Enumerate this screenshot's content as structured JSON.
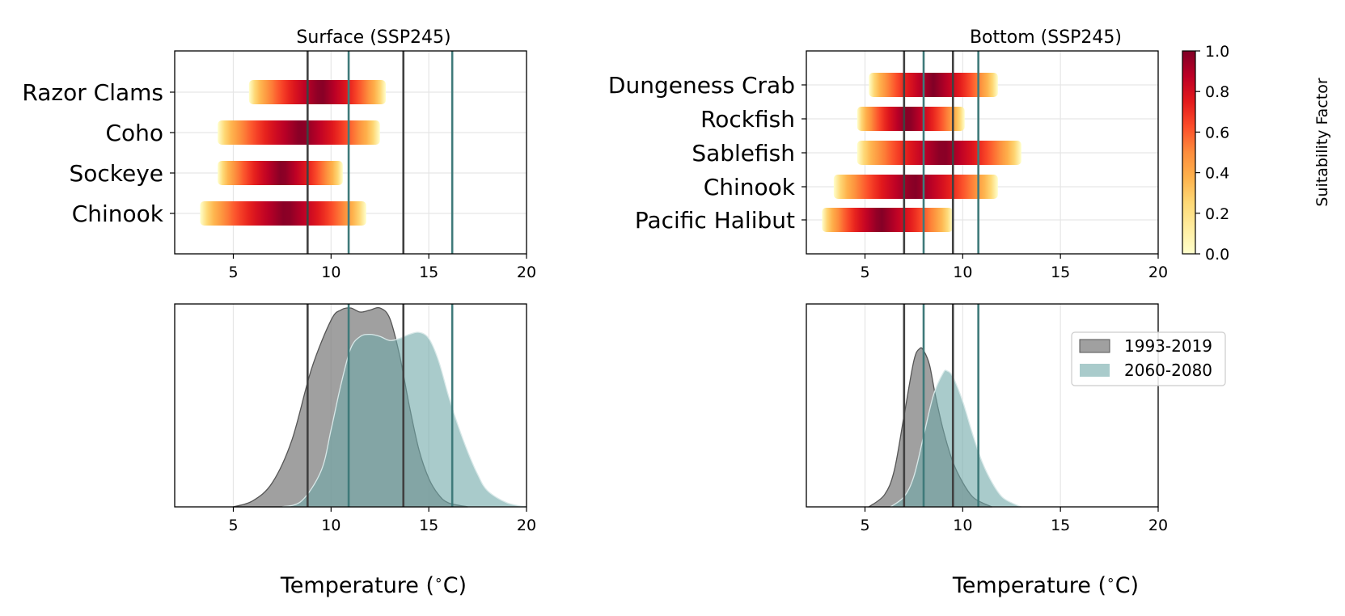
{
  "chart_data": [
    {
      "id": "surface-suitability",
      "type": "heatmap",
      "title": "Surface (SSP245)",
      "xlim": [
        2,
        20
      ],
      "xticks": [
        5,
        10,
        15,
        20
      ],
      "categories": [
        "Razor Clams",
        "Coho",
        "Sockeye",
        "Chinook"
      ],
      "ranges": [
        {
          "name": "Razor Clams",
          "min": 5.8,
          "max": 12.8,
          "peak": 9.5
        },
        {
          "name": "Coho",
          "min": 4.2,
          "max": 12.5,
          "peak": 8.5
        },
        {
          "name": "Sockeye",
          "min": 4.2,
          "max": 10.6,
          "peak": 7.5
        },
        {
          "name": "Chinook",
          "min": 3.3,
          "max": 11.8,
          "peak": 7.7
        }
      ],
      "reference_lines": {
        "1993-2019": [
          8.8,
          13.7
        ],
        "2060-2080": [
          10.9,
          16.2
        ]
      },
      "grid": true
    },
    {
      "id": "bottom-suitability",
      "type": "heatmap",
      "title": "Bottom (SSP245)",
      "xlim": [
        2,
        20
      ],
      "xticks": [
        5,
        10,
        15,
        20
      ],
      "categories": [
        "Dungeness Crab",
        "Rockfish",
        "Sablefish",
        "Chinook",
        "Pacific Halibut"
      ],
      "ranges": [
        {
          "name": "Dungeness Crab",
          "min": 5.2,
          "max": 11.8,
          "peak": 8.5
        },
        {
          "name": "Rockfish",
          "min": 4.6,
          "max": 10.1,
          "peak": 7.2
        },
        {
          "name": "Sablefish",
          "min": 4.6,
          "max": 13.0,
          "peak": 9.0
        },
        {
          "name": "Chinook",
          "min": 3.4,
          "max": 11.8,
          "peak": 7.5
        },
        {
          "name": "Pacific Halibut",
          "min": 2.8,
          "max": 9.5,
          "peak": 5.8
        }
      ],
      "reference_lines": {
        "1993-2019": [
          7.0,
          9.5
        ],
        "2060-2080": [
          8.0,
          10.8
        ]
      },
      "grid": true
    },
    {
      "id": "surface-density",
      "type": "area",
      "xlabel": "Temperature ($^\\circ$C)",
      "xlim": [
        2,
        20
      ],
      "xticks": [
        5,
        10,
        15,
        20
      ],
      "series": [
        {
          "name": "1993-2019",
          "color": "#808080",
          "opacity": 0.75,
          "x": [
            5.0,
            6.0,
            7.0,
            8.0,
            9.0,
            10.0,
            10.5,
            11.0,
            11.5,
            12.0,
            12.5,
            13.0,
            13.5,
            14.0,
            14.5,
            15.0,
            15.5,
            16.0,
            17.0
          ],
          "y": [
            0.0,
            0.03,
            0.12,
            0.33,
            0.68,
            0.92,
            0.97,
            0.98,
            0.96,
            0.97,
            0.98,
            0.93,
            0.75,
            0.5,
            0.28,
            0.14,
            0.06,
            0.02,
            0.0
          ]
        },
        {
          "name": "2060-2080",
          "color": "#6fa8a8",
          "opacity": 0.6,
          "x": [
            7.5,
            8.5,
            9.5,
            10.0,
            10.5,
            11.0,
            11.5,
            12.0,
            12.5,
            13.0,
            13.5,
            14.0,
            14.5,
            15.0,
            15.5,
            16.0,
            16.5,
            17.0,
            17.5,
            18.0,
            19.0,
            20.0
          ],
          "y": [
            0.0,
            0.03,
            0.18,
            0.38,
            0.6,
            0.78,
            0.84,
            0.85,
            0.84,
            0.82,
            0.83,
            0.85,
            0.86,
            0.83,
            0.72,
            0.55,
            0.4,
            0.27,
            0.16,
            0.08,
            0.02,
            0.0
          ]
        }
      ],
      "reference_lines": {
        "1993-2019": [
          8.8,
          13.7
        ],
        "2060-2080": [
          10.9,
          16.2
        ]
      },
      "grid": true
    },
    {
      "id": "bottom-density",
      "type": "area",
      "xlabel": "Temperature ($^\\circ$C)",
      "xlim": [
        2,
        20
      ],
      "xticks": [
        5,
        10,
        15,
        20
      ],
      "legend": "top-right",
      "series": [
        {
          "name": "1993-2019",
          "color": "#808080",
          "opacity": 0.75,
          "x": [
            5.2,
            6.0,
            6.5,
            7.0,
            7.5,
            7.8,
            8.0,
            8.3,
            8.6,
            9.0,
            9.5,
            10.0,
            10.5,
            11.0,
            11.5
          ],
          "y": [
            0.0,
            0.06,
            0.18,
            0.45,
            0.72,
            0.78,
            0.77,
            0.7,
            0.55,
            0.38,
            0.22,
            0.12,
            0.05,
            0.02,
            0.0
          ]
        },
        {
          "name": "2060-2080",
          "color": "#6fa8a8",
          "opacity": 0.6,
          "x": [
            6.3,
            7.0,
            7.5,
            8.0,
            8.5,
            9.0,
            9.2,
            9.5,
            10.0,
            10.5,
            11.0,
            11.5,
            12.0,
            12.5,
            13.0
          ],
          "y": [
            0.0,
            0.05,
            0.15,
            0.35,
            0.55,
            0.66,
            0.67,
            0.64,
            0.52,
            0.36,
            0.22,
            0.12,
            0.05,
            0.02,
            0.0
          ]
        }
      ],
      "reference_lines": {
        "1993-2019": [
          7.0,
          9.5
        ],
        "2060-2080": [
          8.0,
          10.8
        ]
      },
      "grid": true
    }
  ],
  "colorbar": {
    "label": "Suitability Factor",
    "range": [
      0.0,
      1.0
    ],
    "ticks": [
      "0.0",
      "0.2",
      "0.4",
      "0.6",
      "0.8",
      "1.0"
    ],
    "colormap": [
      "#ffffcc",
      "#ffeda0",
      "#fed976",
      "#feb24c",
      "#fd8d3c",
      "#fc4e2a",
      "#e31a1c",
      "#bd0026",
      "#800026"
    ]
  },
  "colors": {
    "line_1993_2019": "#404040",
    "line_2060_2080": "#3f7a7a"
  }
}
